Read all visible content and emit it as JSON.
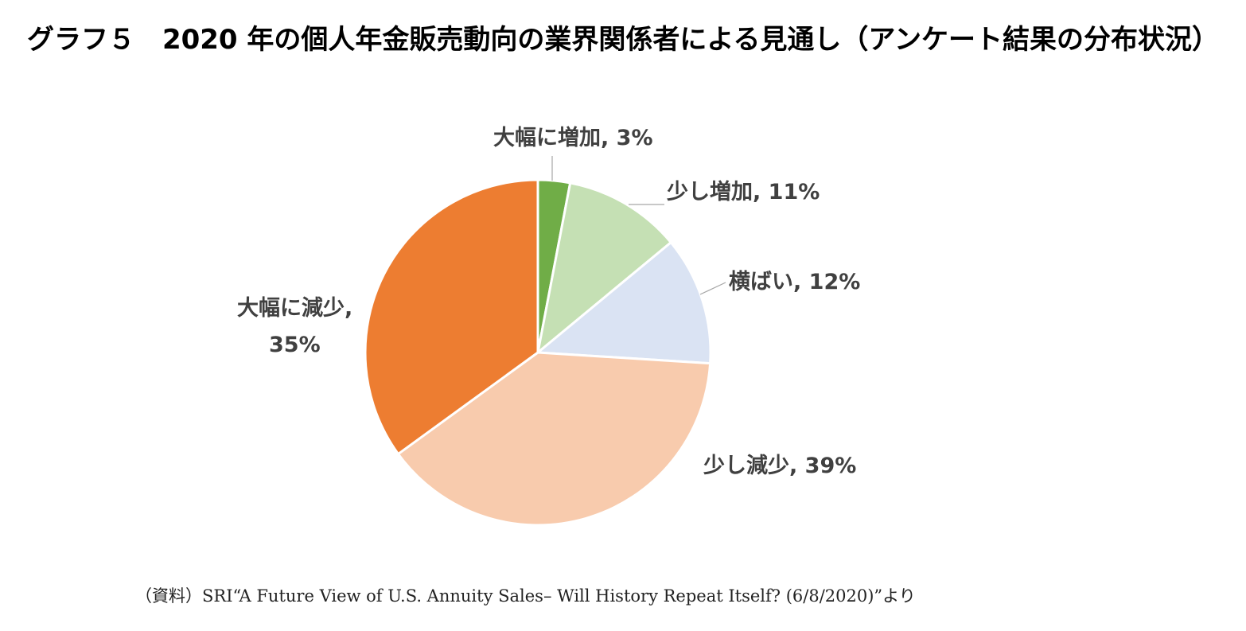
{
  "title": "グラフ５　2020 年の個人年金販売動向の業界関係者による見通し（アンケート結果の分布状況）",
  "source": "（資料）SRI“A Future View of U.S. Annuity Sales– Will History Repeat Itself? (6/8/2020)”より",
  "chart_data": {
    "type": "pie",
    "title": "グラフ５　2020 年の個人年金販売動向の業界関係者による見通し（アンケート結果の分布状況）",
    "categories": [
      "大幅に増加",
      "少し増加",
      "横ばい",
      "少し減少",
      "大幅に減少"
    ],
    "values": [
      3,
      11,
      12,
      39,
      35
    ],
    "unit": "%",
    "colors": [
      "#70ad47",
      "#c5e0b4",
      "#dae3f3",
      "#f8cbad",
      "#ed7d31"
    ],
    "labels": [
      "大幅に増加, 3%",
      "少し増加, 11%",
      "横ばい, 12%",
      "少し減少, 39%",
      "大幅に減少,"
    ],
    "extra_label": "35%",
    "start_angle_deg": 0,
    "direction": "clockwise",
    "legend": "none"
  }
}
